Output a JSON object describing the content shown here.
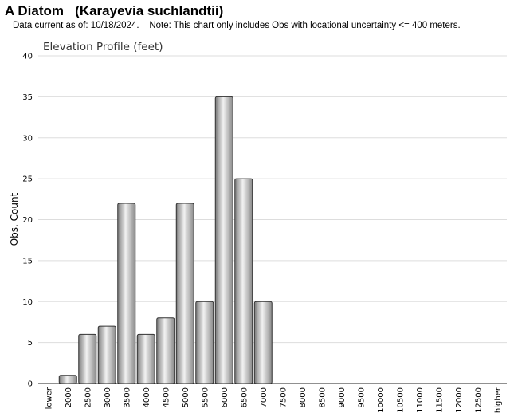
{
  "header": {
    "title": "A Diatom   (Karayevia suchlandtii)",
    "subtitle": "Data current as of: 10/18/2024.    Note: This chart only includes Obs with locational uncertainty <= 400 meters."
  },
  "chart_data": {
    "type": "bar",
    "title": "Elevation Profile (feet)",
    "xlabel": "",
    "ylabel": "Obs. Count",
    "ylim": [
      0,
      40
    ],
    "yticks": [
      0,
      5,
      10,
      15,
      20,
      25,
      30,
      35,
      40
    ],
    "grid": true,
    "categories": [
      "lower",
      "2000",
      "2500",
      "3000",
      "3500",
      "4000",
      "4500",
      "5000",
      "5500",
      "6000",
      "6500",
      "7000",
      "7500",
      "8000",
      "8500",
      "9000",
      "9500",
      "10000",
      "10500",
      "11000",
      "11500",
      "12000",
      "12500",
      "higher"
    ],
    "values": [
      0,
      1,
      6,
      7,
      22,
      6,
      8,
      22,
      10,
      35,
      25,
      10,
      0,
      0,
      0,
      0,
      0,
      0,
      0,
      0,
      0,
      0,
      0,
      0
    ],
    "bar_color": "#b0b0b0"
  }
}
